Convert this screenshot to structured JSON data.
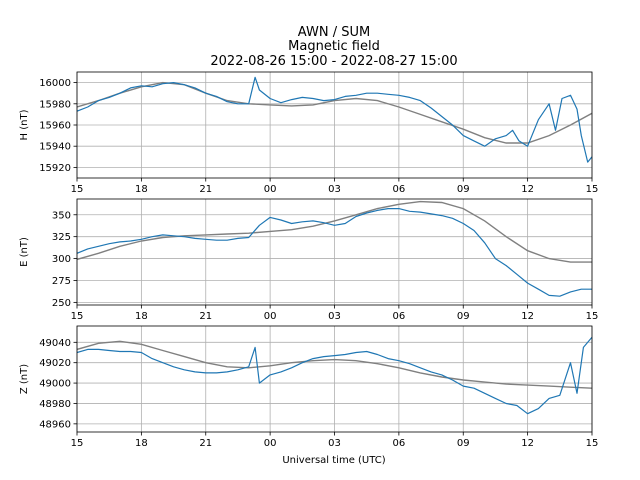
{
  "figure": {
    "title_lines": [
      "AWN / SUM",
      "Magnetic field",
      "2022-08-26 15:00 - 2022-08-27 15:00"
    ],
    "xlabel": "Universal time (UTC)"
  },
  "colors": {
    "measured": "#1f77b4",
    "model": "#808080"
  },
  "chart_data": [
    {
      "type": "line",
      "ylabel": "H (nT)",
      "x_ticks": [
        "15",
        "18",
        "21",
        "00",
        "03",
        "06",
        "09",
        "12",
        "15"
      ],
      "x_range_hours": [
        0,
        24
      ],
      "ylim": [
        15910,
        16010
      ],
      "y_ticks": [
        15920,
        15940,
        15960,
        15980,
        16000
      ],
      "grid": true,
      "series": [
        {
          "role": "measured",
          "x": [
            0,
            0.5,
            1,
            1.5,
            2,
            2.5,
            3,
            3.5,
            4,
            4.5,
            5,
            5.5,
            6,
            6.5,
            7,
            7.5,
            8,
            8.3,
            8.5,
            9,
            9.5,
            10,
            10.5,
            11,
            11.5,
            12,
            12.5,
            13,
            13.5,
            14,
            14.5,
            15,
            15.5,
            16,
            16.5,
            17,
            17.5,
            18,
            18.5,
            19,
            19.5,
            20,
            20.3,
            20.6,
            21,
            21.5,
            22,
            22.3,
            22.6,
            23,
            23.3,
            23.5,
            23.8,
            24
          ],
          "y": [
            15973,
            15977,
            15983,
            15986,
            15990,
            15995,
            15997,
            15996,
            15999,
            16000,
            15998,
            15995,
            15990,
            15987,
            15982,
            15980,
            15980,
            16005,
            15993,
            15985,
            15981,
            15984,
            15986,
            15985,
            15983,
            15984,
            15987,
            15988,
            15990,
            15990,
            15989,
            15988,
            15986,
            15983,
            15976,
            15968,
            15960,
            15950,
            15945,
            15940,
            15947,
            15950,
            15955,
            15945,
            15940,
            15965,
            15980,
            15955,
            15985,
            15988,
            15975,
            15950,
            15925,
            15930
          ]
        },
        {
          "role": "model",
          "x": [
            0,
            1,
            2,
            3,
            4,
            5,
            6,
            7,
            8,
            9,
            10,
            11,
            12,
            13,
            14,
            15,
            16,
            17,
            18,
            19,
            20,
            21,
            22,
            23,
            24
          ],
          "y": [
            15977,
            15983,
            15990,
            15996,
            16000,
            15998,
            15990,
            15983,
            15980,
            15979,
            15978,
            15979,
            15983,
            15985,
            15983,
            15977,
            15970,
            15963,
            15956,
            15948,
            15943,
            15943,
            15950,
            15960,
            15971
          ]
        }
      ]
    },
    {
      "type": "line",
      "ylabel": "E (nT)",
      "x_ticks": [
        "15",
        "18",
        "21",
        "00",
        "03",
        "06",
        "09",
        "12",
        "15"
      ],
      "x_range_hours": [
        0,
        24
      ],
      "ylim": [
        247,
        368
      ],
      "y_ticks": [
        250,
        275,
        300,
        325,
        350
      ],
      "grid": true,
      "series": [
        {
          "role": "measured",
          "x": [
            0,
            0.5,
            1,
            1.5,
            2,
            2.5,
            3,
            3.5,
            4,
            4.5,
            5,
            5.5,
            6,
            6.5,
            7,
            7.5,
            8,
            8.5,
            9,
            9.5,
            10,
            10.5,
            11,
            11.5,
            12,
            12.5,
            13,
            13.5,
            14,
            14.5,
            15,
            15.5,
            16,
            16.5,
            17,
            17.5,
            18,
            18.5,
            19,
            19.5,
            20,
            20.5,
            21,
            21.5,
            22,
            22.5,
            23,
            23.5,
            24
          ],
          "y": [
            306,
            311,
            314,
            317,
            319,
            320,
            322,
            325,
            327,
            326,
            325,
            323,
            322,
            321,
            321,
            323,
            324,
            338,
            347,
            344,
            340,
            342,
            343,
            341,
            338,
            340,
            348,
            352,
            355,
            357,
            357,
            354,
            353,
            351,
            349,
            346,
            340,
            332,
            318,
            300,
            292,
            282,
            272,
            265,
            258,
            257,
            262,
            265,
            265
          ]
        },
        {
          "role": "model",
          "x": [
            0,
            1,
            2,
            3,
            4,
            5,
            6,
            7,
            8,
            9,
            10,
            11,
            12,
            13,
            14,
            15,
            16,
            17,
            18,
            19,
            20,
            21,
            22,
            23,
            24
          ],
          "y": [
            299,
            306,
            314,
            320,
            324,
            326,
            327,
            328,
            329,
            331,
            333,
            337,
            343,
            350,
            357,
            362,
            365,
            364,
            357,
            343,
            325,
            309,
            300,
            296,
            296
          ]
        }
      ]
    },
    {
      "type": "line",
      "ylabel": "Z (nT)",
      "x_ticks": [
        "15",
        "18",
        "21",
        "00",
        "03",
        "06",
        "09",
        "12",
        "15"
      ],
      "x_range_hours": [
        0,
        24
      ],
      "ylim": [
        48952,
        49056
      ],
      "y_ticks": [
        48960,
        48980,
        49000,
        49020,
        49040
      ],
      "grid": true,
      "series": [
        {
          "role": "measured",
          "x": [
            0,
            0.5,
            1,
            1.5,
            2,
            2.5,
            3,
            3.5,
            4,
            4.5,
            5,
            5.5,
            6,
            6.5,
            7,
            7.5,
            8,
            8.3,
            8.5,
            9,
            9.5,
            10,
            10.5,
            11,
            11.5,
            12,
            12.5,
            13,
            13.5,
            14,
            14.5,
            15,
            15.5,
            16,
            16.5,
            17,
            17.5,
            18,
            18.5,
            19,
            19.5,
            20,
            20.5,
            21,
            21.5,
            22,
            22.5,
            23,
            23.3,
            23.6,
            24
          ],
          "y": [
            49030,
            49033,
            49033,
            49032,
            49031,
            49031,
            49030,
            49024,
            49020,
            49016,
            49013,
            49011,
            49010,
            49010,
            49011,
            49013,
            49016,
            49035,
            49000,
            49008,
            49011,
            49015,
            49020,
            49024,
            49026,
            49027,
            49028,
            49030,
            49031,
            49028,
            49024,
            49022,
            49019,
            49015,
            49011,
            49008,
            49003,
            48997,
            48995,
            48990,
            48985,
            48980,
            48978,
            48970,
            48975,
            48985,
            48988,
            49020,
            48990,
            49035,
            49045
          ]
        },
        {
          "role": "model",
          "x": [
            0,
            1,
            2,
            3,
            4,
            5,
            6,
            7,
            8,
            9,
            10,
            11,
            12,
            13,
            14,
            15,
            16,
            17,
            18,
            19,
            20,
            21,
            22,
            23,
            24
          ],
          "y": [
            49033,
            49039,
            49041,
            49038,
            49032,
            49026,
            49020,
            49016,
            49015,
            49017,
            49020,
            49022,
            49023,
            49022,
            49019,
            49015,
            49010,
            49006,
            49003,
            49001,
            48999,
            48998,
            48997,
            48996,
            48995
          ]
        }
      ]
    }
  ]
}
